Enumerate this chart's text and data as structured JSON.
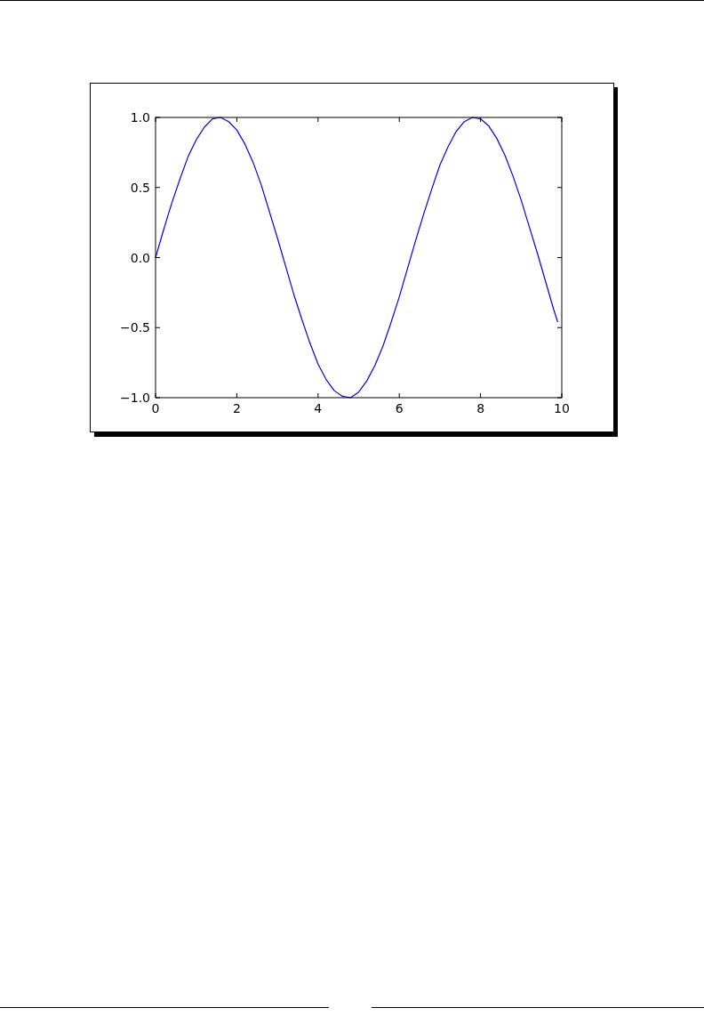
{
  "chart_data": {
    "type": "line",
    "x": [
      0,
      0.2,
      0.4,
      0.6,
      0.8,
      1.0,
      1.2,
      1.4,
      1.6,
      1.8,
      2.0,
      2.2,
      2.4,
      2.6,
      2.8,
      3.0,
      3.2,
      3.4,
      3.6,
      3.8,
      4.0,
      4.2,
      4.4,
      4.6,
      4.8,
      5.0,
      5.2,
      5.4,
      5.6,
      5.8,
      6.0,
      6.2,
      6.4,
      6.6,
      6.8,
      7.0,
      7.2,
      7.4,
      7.6,
      7.8,
      8.0,
      8.2,
      8.4,
      8.6,
      8.8,
      9.0,
      9.2,
      9.4,
      9.6,
      9.8,
      9.9
    ],
    "series": [
      {
        "color": "#0000ff",
        "values": [
          0,
          0.2,
          0.39,
          0.56,
          0.72,
          0.84,
          0.93,
          0.99,
          1.0,
          0.97,
          0.91,
          0.81,
          0.68,
          0.52,
          0.33,
          0.14,
          -0.06,
          -0.26,
          -0.44,
          -0.61,
          -0.76,
          -0.87,
          -0.95,
          -0.99,
          -1.0,
          -0.96,
          -0.88,
          -0.77,
          -0.63,
          -0.46,
          -0.28,
          -0.08,
          0.12,
          0.31,
          0.49,
          0.66,
          0.79,
          0.9,
          0.97,
          1.0,
          0.99,
          0.94,
          0.85,
          0.73,
          0.58,
          0.41,
          0.22,
          0.03,
          -0.17,
          -0.37,
          -0.46
        ]
      }
    ],
    "xlim": [
      0,
      10
    ],
    "xticks": [
      0,
      2,
      4,
      6,
      8,
      10
    ],
    "ylim": [
      -1,
      1
    ],
    "yticks": [
      {
        "value": -1,
        "label": "−1.0"
      },
      {
        "value": -0.5,
        "label": "−0.5"
      },
      {
        "value": 0,
        "label": "0.0"
      },
      {
        "value": 0.5,
        "label": "0.5"
      },
      {
        "value": 1,
        "label": "1.0"
      }
    ],
    "marker": "none",
    "line_style": "solid"
  }
}
